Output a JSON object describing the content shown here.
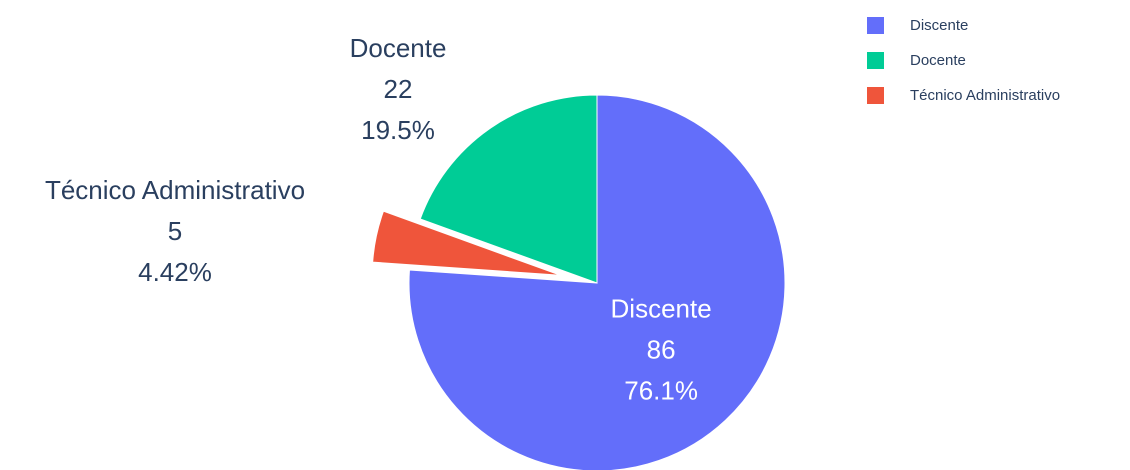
{
  "chart_data": {
    "type": "pie",
    "categories": [
      "Discente",
      "Docente",
      "Técnico Administrativo"
    ],
    "values": [
      86,
      22,
      5
    ],
    "value_labels": [
      "76.1%",
      "19.5%",
      "4.42%"
    ],
    "colors": [
      "#636efa",
      "#00cc96",
      "#ef553b"
    ],
    "direction": "counterclockwise",
    "pull": [
      0,
      0,
      0.2
    ],
    "legend": "top-right"
  }
}
